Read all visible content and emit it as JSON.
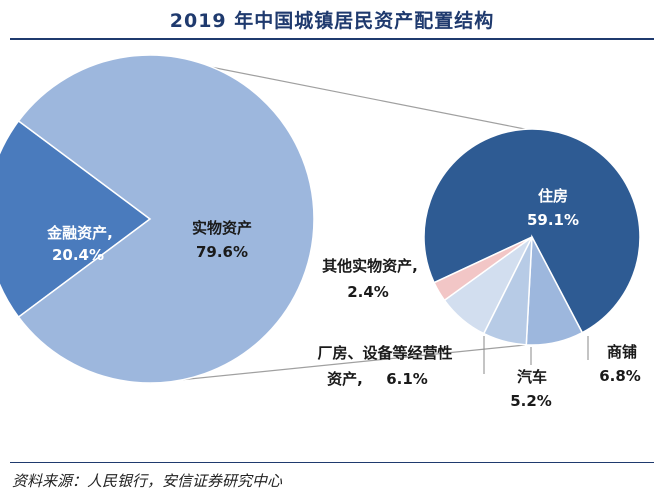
{
  "title": "2019 年中国城镇居民资产配置结构",
  "source": "资料来源：人民银行，安信证券研究中心",
  "colors": {
    "title": "#1f3a6e",
    "financial_assets": "#4a7bbd",
    "physical_assets": "#9db7dd",
    "housing": "#2e5b93",
    "commercial": "#9db7dd",
    "car": "#b7cbe6",
    "business_equipment": "#d2deef",
    "other_physical": "#f2c6c6"
  },
  "chart_data": [
    {
      "type": "pie",
      "series": [
        {
          "label": "金融资产,",
          "value": 20.4,
          "value_text": "20.4%"
        },
        {
          "label": "实物资产",
          "value": 79.6,
          "value_text": "79.6%"
        }
      ]
    },
    {
      "type": "pie",
      "series": [
        {
          "label": "住房",
          "value": 59.1,
          "value_text": "59.1%"
        },
        {
          "label": "商铺",
          "value": 6.8,
          "value_text": "6.8%"
        },
        {
          "label": "汽车",
          "value": 5.2,
          "value_text": "5.2%"
        },
        {
          "label": "厂房、设备等经营性",
          "label2": "资产,",
          "value": 6.1,
          "value_text": "6.1%"
        },
        {
          "label": "其他实物资产,",
          "value": 2.4,
          "value_text": "2.4%"
        }
      ]
    }
  ]
}
